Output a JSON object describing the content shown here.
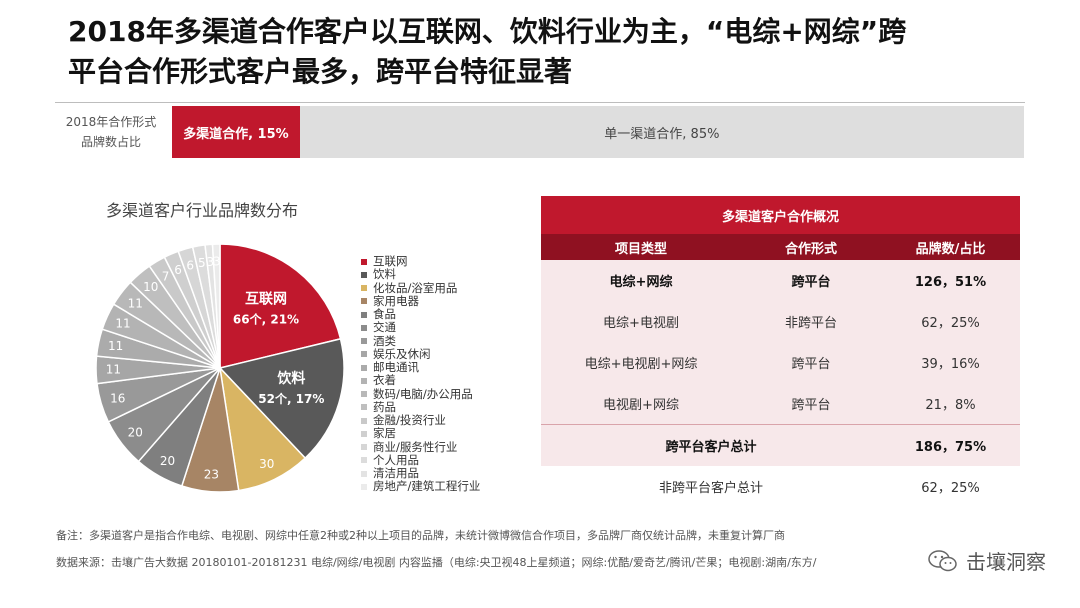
{
  "title": {
    "line1": "2018年多渠道合作客户以互联网、饮料行业为主，“电综+网综”跨",
    "line2": "平台合作形式客户最多，跨平台特征显著"
  },
  "share_bar": {
    "label_line1": "2018年合作形式",
    "label_line2": "品牌数占比",
    "segments": [
      {
        "label": "多渠道合作, 15%",
        "value": 15,
        "color": "#c0182d"
      },
      {
        "label": "单一渠道合作, 85%",
        "value": 85,
        "color": "#dedede"
      }
    ]
  },
  "pie_title": "多渠道客户行业品牌数分布",
  "chart_data": {
    "type": "pie",
    "title": "多渠道客户行业品牌数分布",
    "slices": [
      {
        "label": "互联网",
        "value": 66,
        "display": "66个, 21%",
        "color": "#c0182d"
      },
      {
        "label": "饮料",
        "value": 52,
        "display": "52个, 17%",
        "color": "#595959"
      },
      {
        "label": "化妆品/浴室用品",
        "value": 30,
        "color": "#d9b563"
      },
      {
        "label": "家用电器",
        "value": 23,
        "color": "#a78565"
      },
      {
        "label": "食品",
        "value": 20,
        "color": "#7f7f7f"
      },
      {
        "label": "交通",
        "value": 20,
        "color": "#8c8c8c"
      },
      {
        "label": "酒类",
        "value": 16,
        "color": "#999999"
      },
      {
        "label": "娱乐及休闲",
        "value": 11,
        "color": "#a6a6a6"
      },
      {
        "label": "邮电通讯",
        "value": 11,
        "color": "#ababab"
      },
      {
        "label": "衣着",
        "value": 11,
        "color": "#b3b3b3"
      },
      {
        "label": "数码/电脑/办公用品",
        "value": 11,
        "color": "#b8b8b8"
      },
      {
        "label": "药品",
        "value": 10,
        "color": "#bfbfbf"
      },
      {
        "label": "金融/投资行业",
        "value": 7,
        "color": "#c9c9c9"
      },
      {
        "label": "家居",
        "value": 6,
        "color": "#cfcfcf"
      },
      {
        "label": "商业/服务性行业",
        "value": 6,
        "color": "#d6d6d6"
      },
      {
        "label": "个人用品",
        "value": 5,
        "color": "#dcdcdc"
      },
      {
        "label": "清洁用品",
        "value": 3,
        "color": "#e3e3e3"
      },
      {
        "label": "房地产/建筑工程行业",
        "value": 3,
        "color": "#ebebeb"
      }
    ]
  },
  "table": {
    "caption": "多渠道客户合作概况",
    "headers": [
      "项目类型",
      "合作形式",
      "品牌数/占比"
    ],
    "rows": [
      [
        "电综+网综",
        "跨平台",
        "126，51%"
      ],
      [
        "电综+电视剧",
        "非跨平台",
        "62，25%"
      ],
      [
        "电综+电视剧+网综",
        "跨平台",
        "39，16%"
      ],
      [
        "电视剧+网综",
        "跨平台",
        "21，8%"
      ]
    ],
    "summary": [
      [
        "跨平台客户总计",
        "186，75%"
      ],
      [
        "非跨平台客户总计",
        "62，25%"
      ]
    ]
  },
  "notes": {
    "note1": "备注：多渠道客户是指合作电综、电视剧、网综中任意2种或2种以上项目的品牌，未统计微博微信合作项目，多品牌厂商仅统计品牌，未重复计算厂商",
    "note2": "数据来源：击壤广告大数据 20180101-20181231 电综/网综/电视剧 内容监播（电综:央卫视48上星频道；网综:优酷/爱奇艺/腾讯/芒果；电视剧:湖南/东方/"
  },
  "watermark": "击壤洞察"
}
